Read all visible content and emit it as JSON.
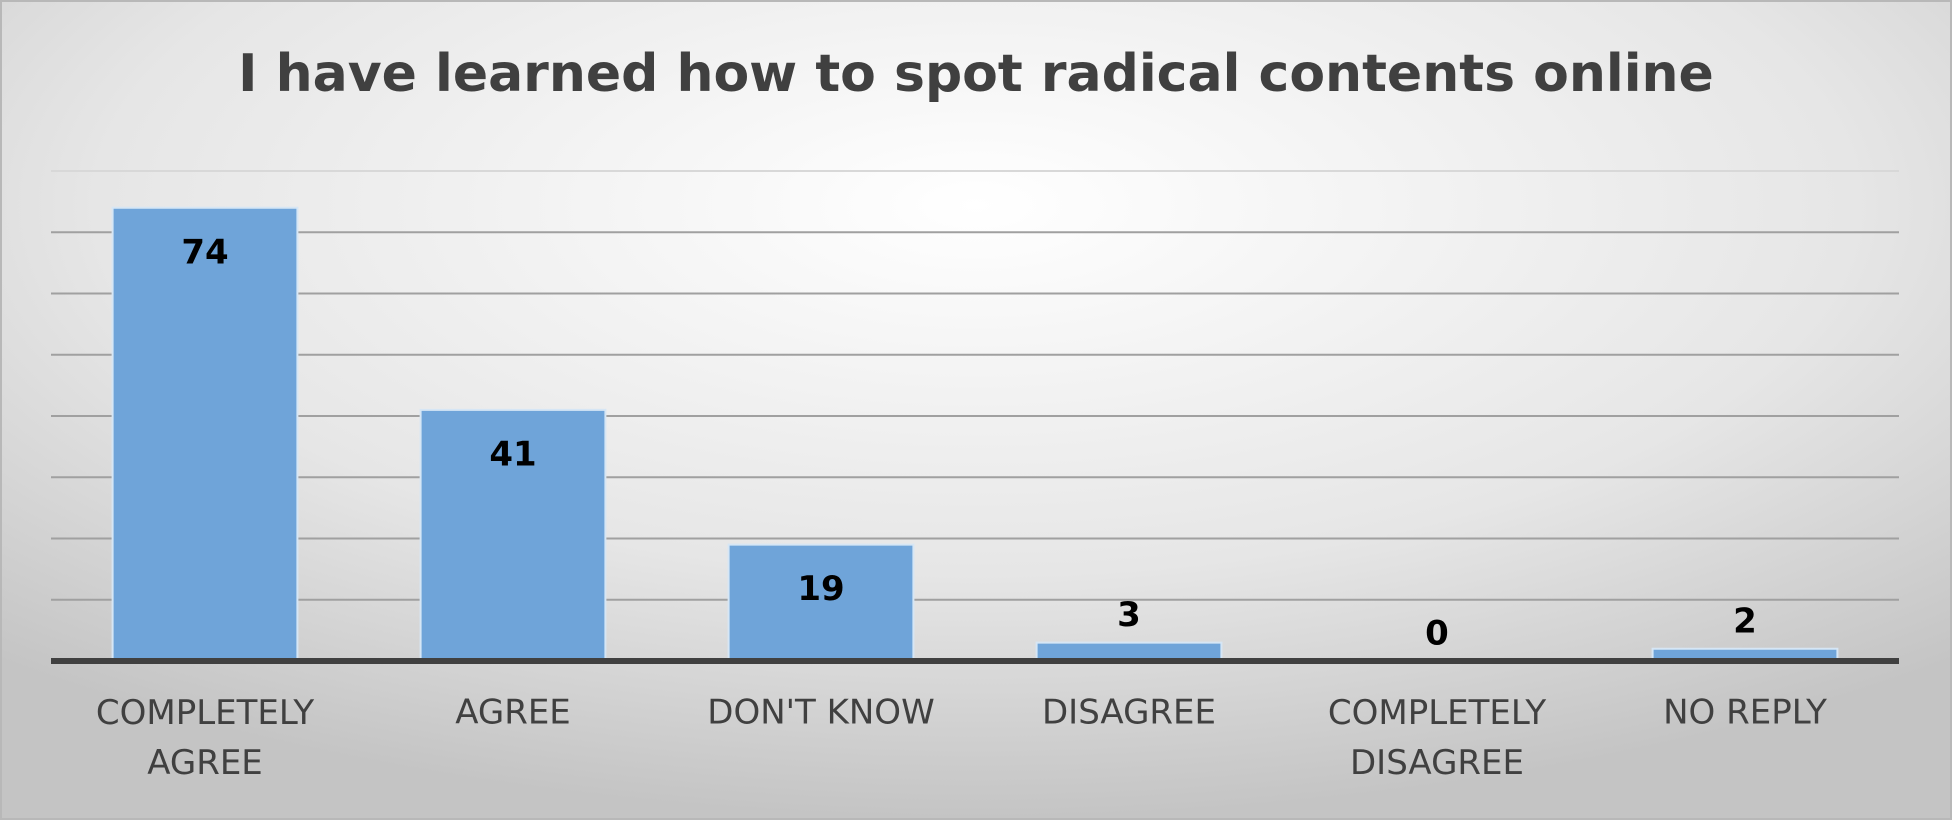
{
  "chart_data": {
    "type": "bar",
    "title": "I have learned how to spot radical contents online",
    "categories": [
      "COMPLETELY AGREE",
      "AGREE",
      "DON'T KNOW",
      "DISAGREE",
      "COMPLETELY DISAGREE",
      "NO REPLY"
    ],
    "values": [
      74,
      41,
      19,
      3,
      0,
      2
    ],
    "color": "#6fa4d9",
    "ylim": [
      0,
      80
    ],
    "yticks": [
      0,
      10,
      20,
      30,
      40,
      50,
      60,
      70,
      80
    ],
    "grid": true
  }
}
